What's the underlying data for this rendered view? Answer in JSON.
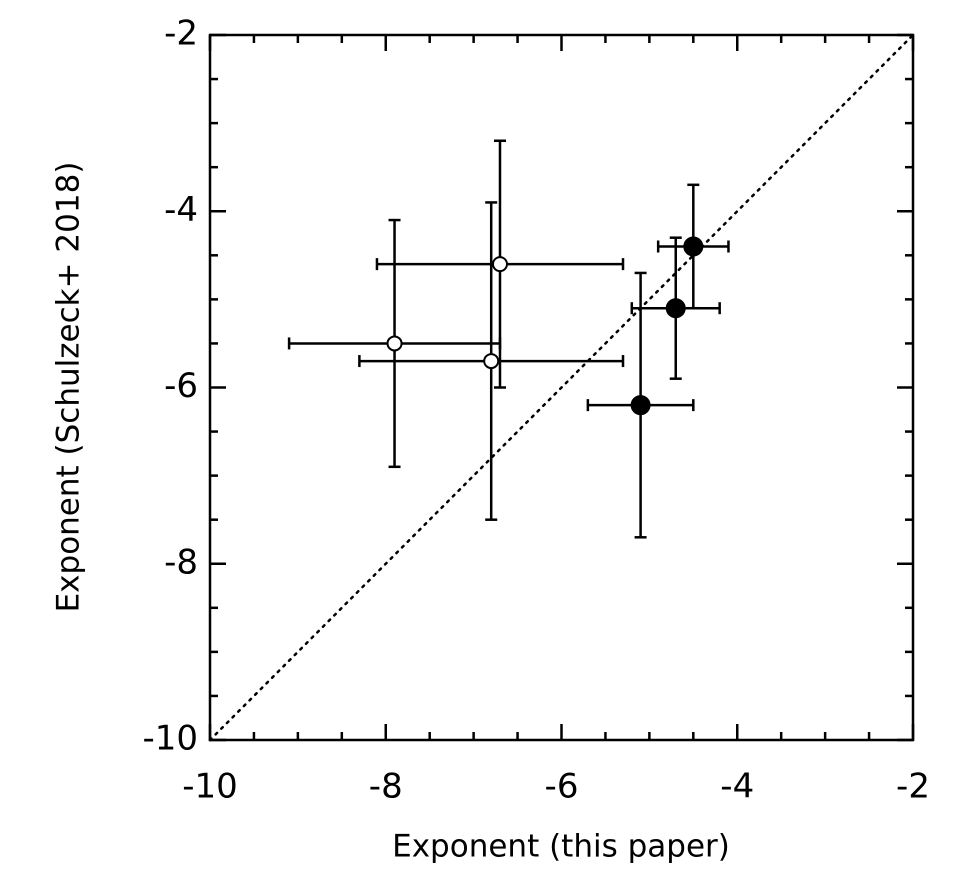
{
  "chart_data": {
    "type": "errorbar-scatter",
    "xlabel": "Exponent (this paper)",
    "ylabel": "Exponent (Schulzeck+ 2018)",
    "xlim": [
      -10,
      -2
    ],
    "ylim": [
      -10,
      -2
    ],
    "xticks": [
      -10,
      -8,
      -6,
      -4,
      -2
    ],
    "yticks": [
      -10,
      -8,
      -6,
      -4,
      -2
    ],
    "identity_line": true,
    "series": [
      {
        "marker": "open",
        "color": "#000000",
        "x": [
          -7.9,
          -6.7,
          -6.8
        ],
        "y": [
          -5.5,
          -4.6,
          -5.7
        ],
        "xerr": [
          1.2,
          1.4,
          1.5
        ],
        "yerr": [
          1.4,
          1.4,
          1.8
        ]
      },
      {
        "marker": "filled",
        "color": "#000000",
        "x": [
          -4.5,
          -4.7,
          -5.1
        ],
        "y": [
          -4.4,
          -5.1,
          -6.2
        ],
        "xerr": [
          0.4,
          0.5,
          0.6
        ],
        "yerr": [
          0.7,
          0.8,
          1.5
        ]
      }
    ]
  }
}
